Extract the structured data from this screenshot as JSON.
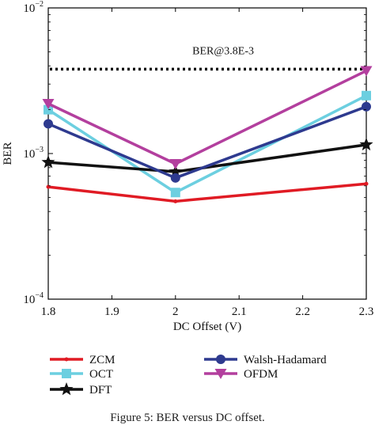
{
  "chart_data": {
    "type": "line",
    "title": "",
    "xlabel": "DC Offset (V)",
    "ylabel": "BER",
    "xlim": [
      1.8,
      2.3
    ],
    "ylim": [
      0.0001,
      0.01
    ],
    "yscale": "log",
    "x_ticks": [
      1.8,
      1.9,
      2.0,
      2.1,
      2.2,
      2.3
    ],
    "x_tick_labels": [
      "1.8",
      "1.9",
      "2",
      "2.1",
      "2.2",
      "2.3"
    ],
    "y_ticks": [
      0.0001,
      0.001,
      0.01
    ],
    "y_tick_labels": [
      {
        "base": "10",
        "exp": "−4"
      },
      {
        "base": "10",
        "exp": "−3"
      },
      {
        "base": "10",
        "exp": "−2"
      }
    ],
    "grid": false,
    "legend_position": "bottom",
    "reference_line": {
      "y": 0.0038,
      "label": "BER@3.8E-3",
      "style": "dotted",
      "color": "#000000"
    },
    "series": [
      {
        "name": "ZCM",
        "color": "#e01b24",
        "marker": "dot",
        "x": [
          1.8,
          2.0,
          2.3
        ],
        "values": [
          0.00059,
          0.00047,
          0.00062
        ]
      },
      {
        "name": "OCT",
        "color": "#6ccfe0",
        "marker": "square",
        "x": [
          1.8,
          2.0,
          2.3
        ],
        "values": [
          0.002,
          0.00054,
          0.0025
        ]
      },
      {
        "name": "DFT",
        "color": "#111111",
        "marker": "star",
        "x": [
          1.8,
          2.0,
          2.3
        ],
        "values": [
          0.00087,
          0.00075,
          0.00115
        ]
      },
      {
        "name": "Walsh-Hadamard",
        "color": "#2e3a8f",
        "marker": "circle",
        "x": [
          1.8,
          2.0,
          2.3
        ],
        "values": [
          0.0016,
          0.00068,
          0.0021
        ]
      },
      {
        "name": "OFDM",
        "color": "#b33f9e",
        "marker": "triangle-down",
        "x": [
          1.8,
          2.0,
          2.3
        ],
        "values": [
          0.0022,
          0.00085,
          0.0037
        ]
      }
    ]
  },
  "caption": "Figure 5: BER versus DC offset."
}
